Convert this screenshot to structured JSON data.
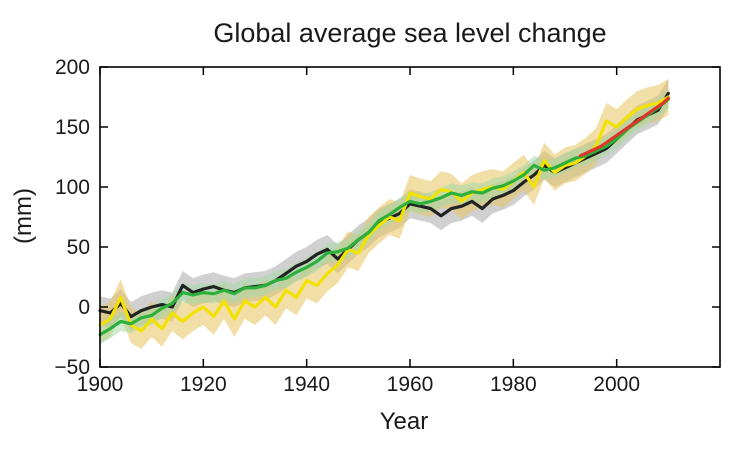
{
  "chart_data": {
    "type": "line",
    "title": "Global average sea level change",
    "xlabel": "Year",
    "ylabel": "(mm)",
    "xlim": [
      1900,
      2020
    ],
    "ylim": [
      -50,
      200
    ],
    "xticks": [
      1900,
      1920,
      1940,
      1960,
      1980,
      2000
    ],
    "yticks": [
      -50,
      0,
      50,
      100,
      150,
      200
    ],
    "grid": false,
    "legend": "none",
    "series": [
      {
        "color": "#222222",
        "band_color": "#a9a9a9",
        "band": 12,
        "x": [
          1900,
          1902,
          1904,
          1906,
          1908,
          1910,
          1912,
          1914,
          1916,
          1918,
          1920,
          1922,
          1924,
          1926,
          1928,
          1930,
          1932,
          1934,
          1936,
          1938,
          1940,
          1942,
          1944,
          1946,
          1948,
          1950,
          1952,
          1954,
          1956,
          1958,
          1960,
          1962,
          1964,
          1966,
          1968,
          1970,
          1972,
          1974,
          1976,
          1978,
          1980,
          1982,
          1984,
          1986,
          1988,
          1990,
          1992,
          1994,
          1996,
          1998,
          2000,
          2002,
          2004,
          2006,
          2008,
          2010
        ],
        "y": [
          -3,
          -5,
          3,
          -8,
          -3,
          0,
          2,
          0,
          18,
          12,
          15,
          17,
          14,
          12,
          16,
          17,
          18,
          22,
          28,
          34,
          38,
          44,
          48,
          40,
          48,
          56,
          62,
          70,
          74,
          78,
          86,
          84,
          82,
          76,
          82,
          84,
          88,
          82,
          90,
          93,
          97,
          104,
          110,
          118,
          112,
          116,
          120,
          124,
          128,
          132,
          140,
          148,
          156,
          160,
          164,
          178
        ]
      },
      {
        "color": "#f2e200",
        "band_color": "#e7c25e",
        "band": 15,
        "x": [
          1900,
          1902,
          1904,
          1906,
          1908,
          1910,
          1912,
          1914,
          1916,
          1918,
          1920,
          1922,
          1924,
          1926,
          1928,
          1930,
          1932,
          1934,
          1936,
          1938,
          1940,
          1942,
          1944,
          1946,
          1948,
          1950,
          1952,
          1954,
          1956,
          1958,
          1960,
          1962,
          1964,
          1966,
          1968,
          1970,
          1972,
          1974,
          1976,
          1978,
          1980,
          1982,
          1984,
          1986,
          1988,
          1990,
          1992,
          1994,
          1996,
          1998,
          2000,
          2002,
          2004,
          2006,
          2008,
          2010
        ],
        "y": [
          -15,
          -10,
          8,
          -15,
          -20,
          -10,
          -18,
          -5,
          -12,
          -5,
          0,
          -8,
          5,
          -10,
          5,
          0,
          8,
          0,
          14,
          8,
          22,
          18,
          28,
          35,
          48,
          45,
          60,
          68,
          75,
          72,
          95,
          92,
          90,
          98,
          96,
          88,
          95,
          98,
          100,
          98,
          105,
          112,
          100,
          122,
          112,
          118,
          120,
          126,
          134,
          155,
          150,
          158,
          165,
          168,
          170,
          175
        ]
      },
      {
        "color": "#2cb03c",
        "band_color": "#a5d8a8",
        "band": 8,
        "x": [
          1900,
          1902,
          1904,
          1906,
          1908,
          1910,
          1912,
          1914,
          1916,
          1918,
          1920,
          1922,
          1924,
          1926,
          1928,
          1930,
          1932,
          1934,
          1936,
          1938,
          1940,
          1942,
          1944,
          1946,
          1948,
          1950,
          1952,
          1954,
          1956,
          1958,
          1960,
          1962,
          1964,
          1966,
          1968,
          1970,
          1972,
          1974,
          1976,
          1978,
          1980,
          1982,
          1984,
          1986,
          1988,
          1990,
          1992,
          1994,
          1996,
          1998,
          2000,
          2002,
          2004,
          2006,
          2008,
          2010
        ],
        "y": [
          -23,
          -18,
          -12,
          -14,
          -9,
          -7,
          -1,
          3,
          12,
          10,
          12,
          11,
          14,
          11,
          16,
          16,
          18,
          22,
          24,
          29,
          33,
          38,
          45,
          46,
          49,
          56,
          62,
          72,
          77,
          83,
          88,
          86,
          88,
          91,
          95,
          93,
          96,
          95,
          99,
          101,
          105,
          110,
          118,
          114,
          116,
          120,
          124,
          126,
          130,
          134,
          140,
          148,
          154,
          160,
          166,
          173
        ]
      },
      {
        "color": "#e0332a",
        "x": [
          1993,
          1995,
          1997,
          1999,
          2001,
          2003,
          2005,
          2007,
          2009,
          2010
        ],
        "y": [
          126,
          130,
          134,
          140,
          146,
          152,
          158,
          164,
          170,
          174
        ]
      }
    ]
  }
}
